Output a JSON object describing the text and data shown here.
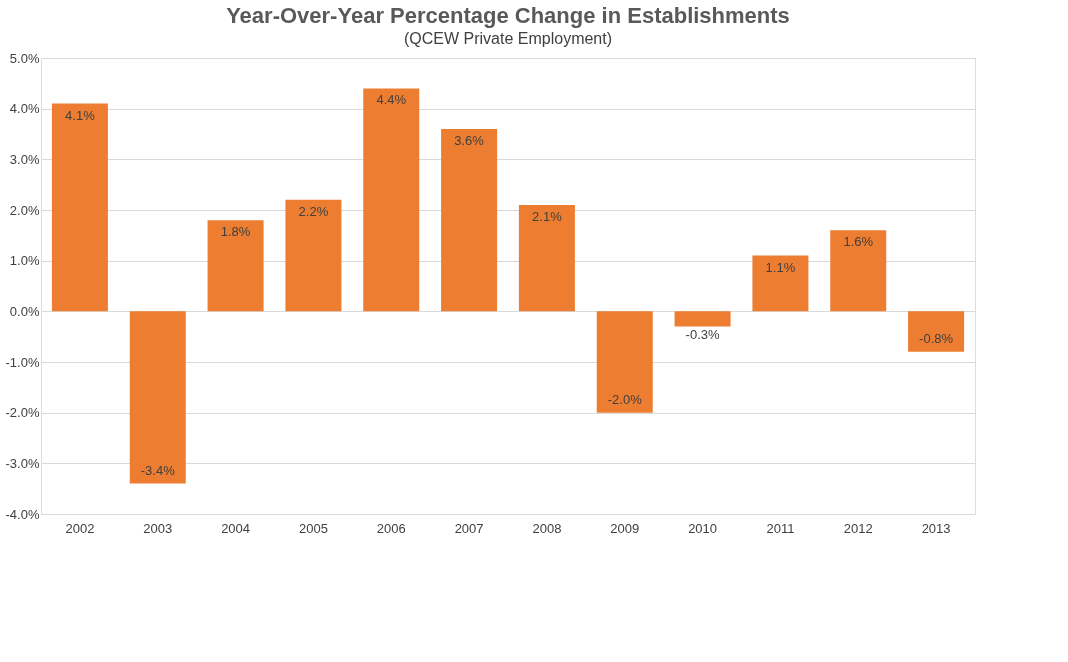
{
  "chart_data": {
    "type": "bar",
    "title": "Year-Over-Year Percentage Change in Establishments",
    "subtitle": "(QCEW Private Employment)",
    "categories": [
      "2002",
      "2003",
      "2004",
      "2005",
      "2006",
      "2007",
      "2008",
      "2009",
      "2010",
      "2011",
      "2012",
      "2013"
    ],
    "values": [
      4.1,
      -3.4,
      1.8,
      2.2,
      4.4,
      3.6,
      2.1,
      -2.0,
      -0.3,
      1.1,
      1.6,
      -0.8
    ],
    "value_labels": [
      "4.1%",
      "-3.4%",
      "1.8%",
      "2.2%",
      "4.4%",
      "3.6%",
      "2.1%",
      "-2.0%",
      "-0.3%",
      "1.1%",
      "1.6%",
      "-0.8%"
    ],
    "color": "#ed7d31",
    "ylim": [
      -4,
      5
    ],
    "yticks": [
      {
        "value": -4,
        "label": "-4.0%"
      },
      {
        "value": -3,
        "label": "-3.0%"
      },
      {
        "value": -2,
        "label": "-2.0%"
      },
      {
        "value": -1,
        "label": "-1.0%"
      },
      {
        "value": 0,
        "label": "0.0%"
      },
      {
        "value": 1,
        "label": "1.0%"
      },
      {
        "value": 2,
        "label": "2.0%"
      },
      {
        "value": 3,
        "label": "3.0%"
      },
      {
        "value": 4,
        "label": "4.0%"
      },
      {
        "value": 5,
        "label": "5.0%"
      }
    ],
    "grid": "y"
  }
}
